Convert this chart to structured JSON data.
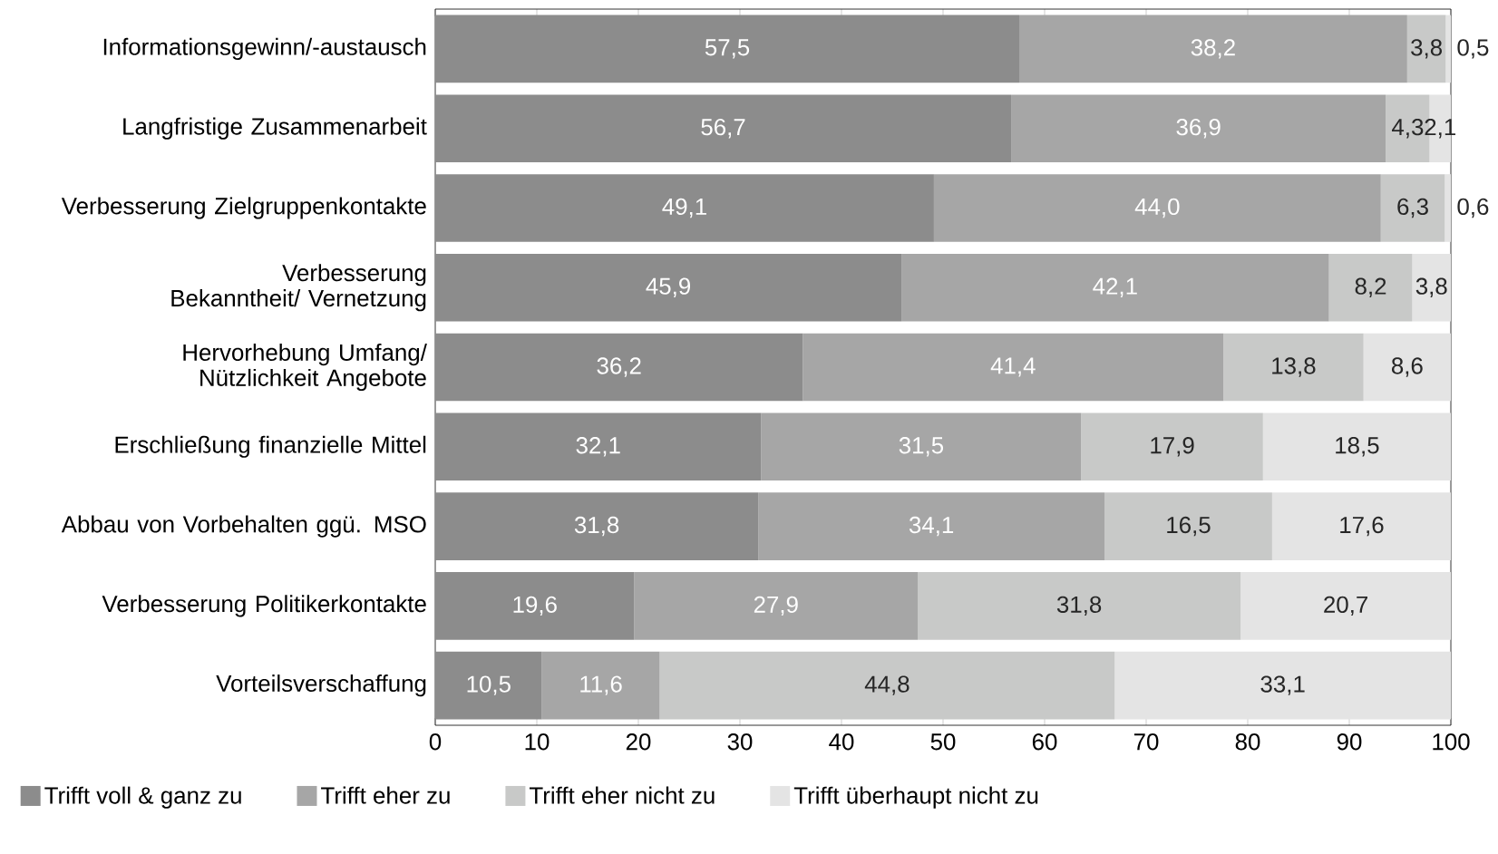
{
  "chart_data": {
    "type": "bar",
    "orientation": "horizontal",
    "stacked": true,
    "legend": "bottom",
    "categories": [
      "Informationsgewinn/-austausch",
      "Langfristige Zusammenarbeit",
      "Verbesserung Zielgruppenkontakte",
      "Verbesserung Bekanntheit/ Vernetzung",
      "Hervorhebung Umfang/ Nützlichkeit Angebote",
      "Erschließung finanzielle Mittel",
      "Abbau von Vorbehalten ggü. MSO",
      "Verbesserung Politikerkontakte",
      "Vorteilsverschaffung"
    ],
    "series": [
      {
        "name": "Trifft voll & ganz zu",
        "color": "#8c8c8c",
        "values": [
          57.5,
          56.7,
          49.1,
          45.9,
          36.2,
          32.1,
          31.8,
          19.6,
          10.5
        ],
        "value_labels": [
          "57,5",
          "56,7",
          "49,1",
          "45,9",
          "36,2",
          "32,1",
          "31,8",
          "19,6",
          "10,5"
        ]
      },
      {
        "name": "Trifft eher zu",
        "color": "#a6a6a6",
        "values": [
          38.2,
          36.9,
          44.0,
          42.1,
          41.4,
          31.5,
          34.1,
          27.9,
          11.6
        ],
        "value_labels": [
          "38,2",
          "36,9",
          "44,0",
          "42,1",
          "41,4",
          "31,5",
          "34,1",
          "27,9",
          "11,6"
        ]
      },
      {
        "name": "Trifft eher nicht zu",
        "color": "#c8c9c8",
        "values": [
          3.8,
          4.3,
          6.3,
          8.2,
          13.8,
          17.9,
          16.5,
          31.8,
          44.8
        ],
        "value_labels": [
          "3,8",
          "4,3",
          "6,3",
          "8,2",
          "13,8",
          "17,9",
          "16,5",
          "31,8",
          "44,8"
        ]
      },
      {
        "name": "Trifft überhaupt nicht zu",
        "color": "#e4e4e4",
        "values": [
          0.5,
          2.1,
          0.6,
          3.8,
          8.6,
          18.5,
          17.6,
          20.7,
          33.1
        ],
        "value_labels": [
          "0,5",
          "2,1",
          "0,6",
          "3,8",
          "8,6",
          "18,5",
          "17,6",
          "20,7",
          "33,1"
        ]
      }
    ],
    "xlim": [
      0,
      100
    ],
    "xticks": [
      0,
      10,
      20,
      30,
      40,
      50,
      60,
      70,
      80,
      90,
      100
    ]
  }
}
